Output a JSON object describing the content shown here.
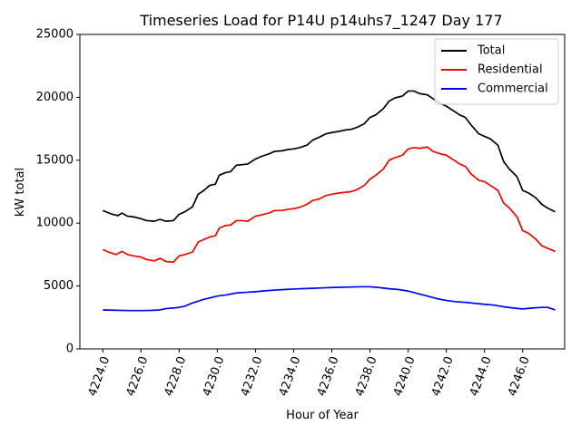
{
  "chart_data": {
    "type": "line",
    "title": "Timeseries Load for P14U p14uhs7_1247  Day 177",
    "xlabel": "Hour of Year",
    "ylabel": "kW total",
    "xlim": [
      4222.8,
      4248.2
    ],
    "ylim": [
      0,
      25000
    ],
    "x_ticks": [
      4224.0,
      4226.0,
      4228.0,
      4230.0,
      4232.0,
      4234.0,
      4236.0,
      4238.0,
      4240.0,
      4242.0,
      4244.0,
      4246.0
    ],
    "x_tick_labels": [
      "4224.0",
      "4226.0",
      "4228.0",
      "4230.0",
      "4232.0",
      "4234.0",
      "4236.0",
      "4238.0",
      "4240.0",
      "4242.0",
      "4244.0",
      "4246.0"
    ],
    "y_ticks": [
      0,
      5000,
      10000,
      15000,
      20000,
      25000
    ],
    "y_tick_labels": [
      "0",
      "5000",
      "10000",
      "15000",
      "20000",
      "25000"
    ],
    "legend_position": "top-right",
    "series": [
      {
        "name": "Total",
        "color": "#000000",
        "points": [
          [
            4224.0,
            11000
          ],
          [
            4224.5,
            10700
          ],
          [
            4224.8,
            10600
          ],
          [
            4225.0,
            10800
          ],
          [
            4225.3,
            10550
          ],
          [
            4225.6,
            10500
          ],
          [
            4226.0,
            10350
          ],
          [
            4226.3,
            10200
          ],
          [
            4226.7,
            10150
          ],
          [
            4227.0,
            10300
          ],
          [
            4227.3,
            10150
          ],
          [
            4227.7,
            10200
          ],
          [
            4228.0,
            10700
          ],
          [
            4228.3,
            10900
          ],
          [
            4228.7,
            11300
          ],
          [
            4229.0,
            12300
          ],
          [
            4229.3,
            12600
          ],
          [
            4229.6,
            13000
          ],
          [
            4229.9,
            13100
          ],
          [
            4230.1,
            13800
          ],
          [
            4230.4,
            14000
          ],
          [
            4230.7,
            14100
          ],
          [
            4231.0,
            14600
          ],
          [
            4231.3,
            14650
          ],
          [
            4231.6,
            14700
          ],
          [
            4232.0,
            15100
          ],
          [
            4232.3,
            15300
          ],
          [
            4232.7,
            15500
          ],
          [
            4233.0,
            15700
          ],
          [
            4233.4,
            15750
          ],
          [
            4233.7,
            15850
          ],
          [
            4234.0,
            15900
          ],
          [
            4234.3,
            16000
          ],
          [
            4234.7,
            16200
          ],
          [
            4235.0,
            16600
          ],
          [
            4235.3,
            16800
          ],
          [
            4235.7,
            17100
          ],
          [
            4236.0,
            17200
          ],
          [
            4236.4,
            17300
          ],
          [
            4236.7,
            17400
          ],
          [
            4237.0,
            17450
          ],
          [
            4237.3,
            17600
          ],
          [
            4237.7,
            17900
          ],
          [
            4238.0,
            18400
          ],
          [
            4238.3,
            18600
          ],
          [
            4238.7,
            19100
          ],
          [
            4239.0,
            19700
          ],
          [
            4239.3,
            19950
          ],
          [
            4239.7,
            20100
          ],
          [
            4240.0,
            20500
          ],
          [
            4240.3,
            20500
          ],
          [
            4240.6,
            20300
          ],
          [
            4241.0,
            20200
          ],
          [
            4241.3,
            19900
          ],
          [
            4241.7,
            19500
          ],
          [
            4242.0,
            19300
          ],
          [
            4242.3,
            19000
          ],
          [
            4242.7,
            18600
          ],
          [
            4243.0,
            18400
          ],
          [
            4243.3,
            17800
          ],
          [
            4243.7,
            17100
          ],
          [
            4244.0,
            16900
          ],
          [
            4244.3,
            16700
          ],
          [
            4244.7,
            16200
          ],
          [
            4245.0,
            14900
          ],
          [
            4245.3,
            14300
          ],
          [
            4245.7,
            13700
          ],
          [
            4246.0,
            12600
          ],
          [
            4246.3,
            12400
          ],
          [
            4246.7,
            12000
          ],
          [
            4247.0,
            11500
          ],
          [
            4247.3,
            11200
          ],
          [
            4247.7,
            10900
          ]
        ]
      },
      {
        "name": "Residential",
        "color": "#ff0000",
        "points": [
          [
            4224.0,
            7900
          ],
          [
            4224.3,
            7700
          ],
          [
            4224.7,
            7500
          ],
          [
            4225.0,
            7750
          ],
          [
            4225.3,
            7500
          ],
          [
            4225.6,
            7400
          ],
          [
            4226.0,
            7300
          ],
          [
            4226.3,
            7100
          ],
          [
            4226.7,
            7000
          ],
          [
            4227.0,
            7200
          ],
          [
            4227.3,
            6950
          ],
          [
            4227.7,
            6900
          ],
          [
            4228.0,
            7400
          ],
          [
            4228.3,
            7500
          ],
          [
            4228.7,
            7700
          ],
          [
            4229.0,
            8500
          ],
          [
            4229.3,
            8700
          ],
          [
            4229.6,
            8900
          ],
          [
            4229.9,
            9000
          ],
          [
            4230.1,
            9600
          ],
          [
            4230.4,
            9800
          ],
          [
            4230.7,
            9850
          ],
          [
            4231.0,
            10200
          ],
          [
            4231.3,
            10200
          ],
          [
            4231.6,
            10150
          ],
          [
            4232.0,
            10550
          ],
          [
            4232.3,
            10650
          ],
          [
            4232.7,
            10800
          ],
          [
            4233.0,
            11000
          ],
          [
            4233.4,
            11000
          ],
          [
            4233.7,
            11100
          ],
          [
            4234.0,
            11150
          ],
          [
            4234.3,
            11250
          ],
          [
            4234.7,
            11500
          ],
          [
            4235.0,
            11800
          ],
          [
            4235.3,
            11900
          ],
          [
            4235.7,
            12200
          ],
          [
            4236.0,
            12300
          ],
          [
            4236.4,
            12400
          ],
          [
            4236.7,
            12450
          ],
          [
            4237.0,
            12500
          ],
          [
            4237.3,
            12650
          ],
          [
            4237.7,
            13000
          ],
          [
            4238.0,
            13500
          ],
          [
            4238.3,
            13800
          ],
          [
            4238.7,
            14300
          ],
          [
            4239.0,
            15000
          ],
          [
            4239.3,
            15200
          ],
          [
            4239.7,
            15400
          ],
          [
            4240.0,
            15900
          ],
          [
            4240.3,
            16000
          ],
          [
            4240.6,
            15950
          ],
          [
            4241.0,
            16050
          ],
          [
            4241.3,
            15700
          ],
          [
            4241.7,
            15500
          ],
          [
            4242.0,
            15400
          ],
          [
            4242.3,
            15100
          ],
          [
            4242.7,
            14700
          ],
          [
            4243.0,
            14500
          ],
          [
            4243.3,
            13900
          ],
          [
            4243.7,
            13400
          ],
          [
            4244.0,
            13300
          ],
          [
            4244.3,
            13000
          ],
          [
            4244.7,
            12600
          ],
          [
            4245.0,
            11600
          ],
          [
            4245.3,
            11200
          ],
          [
            4245.7,
            10500
          ],
          [
            4246.0,
            9400
          ],
          [
            4246.3,
            9200
          ],
          [
            4246.7,
            8700
          ],
          [
            4247.0,
            8200
          ],
          [
            4247.3,
            8000
          ],
          [
            4247.7,
            7750
          ]
        ]
      },
      {
        "name": "Commercial",
        "color": "#0000ff",
        "points": [
          [
            4224.0,
            3100
          ],
          [
            4224.5,
            3080
          ],
          [
            4225.0,
            3060
          ],
          [
            4225.5,
            3050
          ],
          [
            4226.0,
            3050
          ],
          [
            4226.5,
            3060
          ],
          [
            4227.0,
            3100
          ],
          [
            4227.3,
            3200
          ],
          [
            4227.7,
            3250
          ],
          [
            4228.0,
            3300
          ],
          [
            4228.3,
            3400
          ],
          [
            4228.7,
            3650
          ],
          [
            4229.0,
            3800
          ],
          [
            4229.3,
            3950
          ],
          [
            4229.6,
            4050
          ],
          [
            4230.0,
            4200
          ],
          [
            4230.5,
            4300
          ],
          [
            4231.0,
            4450
          ],
          [
            4231.5,
            4500
          ],
          [
            4232.0,
            4550
          ],
          [
            4232.5,
            4620
          ],
          [
            4233.0,
            4680
          ],
          [
            4233.5,
            4720
          ],
          [
            4234.0,
            4760
          ],
          [
            4234.5,
            4790
          ],
          [
            4235.0,
            4820
          ],
          [
            4235.5,
            4850
          ],
          [
            4236.0,
            4880
          ],
          [
            4236.5,
            4900
          ],
          [
            4237.0,
            4920
          ],
          [
            4237.5,
            4940
          ],
          [
            4238.0,
            4940
          ],
          [
            4238.5,
            4870
          ],
          [
            4239.0,
            4780
          ],
          [
            4239.5,
            4720
          ],
          [
            4240.0,
            4600
          ],
          [
            4240.5,
            4400
          ],
          [
            4241.0,
            4200
          ],
          [
            4241.5,
            4000
          ],
          [
            4242.0,
            3850
          ],
          [
            4242.5,
            3750
          ],
          [
            4243.0,
            3700
          ],
          [
            4243.5,
            3620
          ],
          [
            4244.0,
            3550
          ],
          [
            4244.5,
            3480
          ],
          [
            4245.0,
            3350
          ],
          [
            4245.5,
            3250
          ],
          [
            4246.0,
            3180
          ],
          [
            4246.5,
            3250
          ],
          [
            4247.0,
            3300
          ],
          [
            4247.3,
            3300
          ],
          [
            4247.7,
            3100
          ]
        ]
      }
    ]
  }
}
